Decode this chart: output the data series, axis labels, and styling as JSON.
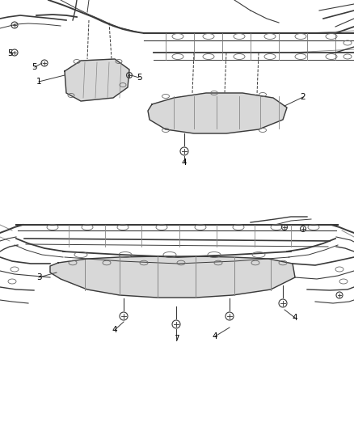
{
  "bg_color": "#ffffff",
  "fig_width": 4.38,
  "fig_height": 5.33,
  "dpi": 100,
  "line_color": "#3a3a3a",
  "text_color": "#000000",
  "font_size": 7.5,
  "top_panel": {
    "y_min": 270,
    "y_max": 533
  },
  "bottom_panel": {
    "y_min": 0,
    "y_max": 265
  }
}
